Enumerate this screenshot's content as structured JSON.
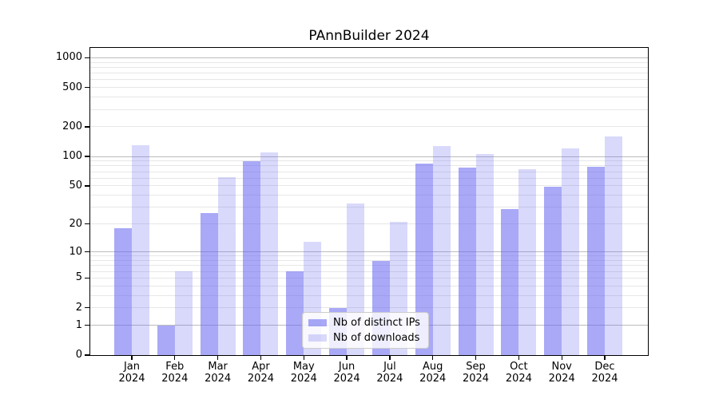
{
  "title": "PAnnBuilder 2024",
  "chart_data": {
    "type": "bar",
    "title": "PAnnBuilder 2024",
    "categories": [
      "Jan",
      "Feb",
      "Mar",
      "Apr",
      "May",
      "Jun",
      "Jul",
      "Aug",
      "Sep",
      "Oct",
      "Nov",
      "Dec"
    ],
    "year": "2024",
    "series": [
      {
        "name": "Nb of distinct IPs",
        "values": [
          18,
          1,
          26,
          89,
          6,
          2,
          8,
          85,
          77,
          29,
          49,
          78
        ],
        "color": "rgba(98,98,240,0.55)"
      },
      {
        "name": "Nb of downloads",
        "values": [
          129,
          6,
          61,
          110,
          13,
          33,
          21,
          127,
          105,
          74,
          121,
          161
        ],
        "color": "rgba(98,98,240,0.24)"
      }
    ],
    "xlabel": "",
    "ylabel": "",
    "yscale": "log1p",
    "ymax_log10": 3.1,
    "ytick_values": [
      0,
      1,
      2,
      5,
      10,
      20,
      50,
      100,
      200,
      500,
      1000
    ],
    "ytick_labels": [
      "0",
      "1",
      "2",
      "5",
      "10",
      "20",
      "50",
      "100",
      "200",
      "500",
      "1000"
    ],
    "grid": {
      "shown": true,
      "major_values": [
        1,
        10,
        100,
        1000
      ],
      "minor_values": [
        2,
        3,
        4,
        5,
        6,
        7,
        8,
        9,
        20,
        30,
        40,
        50,
        60,
        70,
        80,
        90,
        200,
        300,
        400,
        500,
        600,
        700,
        800,
        900
      ],
      "major_color": "#bcbcbc",
      "minor_color": "#e7e7e7"
    },
    "legend_position": "inside lower-center"
  },
  "legend": {
    "items": [
      {
        "label": "Nb of distinct IPs",
        "color": "rgba(98,98,240,0.55)"
      },
      {
        "label": "Nb of downloads",
        "color": "rgba(98,98,240,0.24)"
      }
    ]
  },
  "colors": {
    "distinct_ips_bar": "rgba(98,98,240,0.55)",
    "downloads_bar": "rgba(98,98,240,0.24)",
    "major_grid": "#bcbcbc",
    "minor_grid": "#e7e7e7",
    "axis": "#000000",
    "background": "#ffffff"
  }
}
